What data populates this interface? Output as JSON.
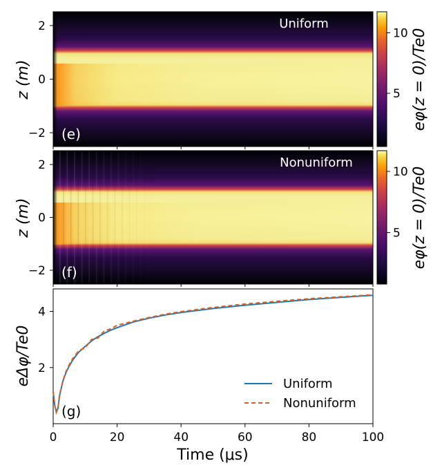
{
  "chart_data": [
    {
      "panel": "(e)",
      "type": "heatmap",
      "title": "Uniform",
      "xlabel": "",
      "ylabel": "z (m)",
      "xlim": [
        0,
        100
      ],
      "ylim": [
        -2.5,
        2.5
      ],
      "yticks": [
        2,
        0,
        -2
      ],
      "yticklabels": [
        "2",
        "0",
        "−2"
      ],
      "colorbar": {
        "label": "eφ(z = 0)/Te0",
        "range": [
          1,
          11.5
        ],
        "ticks": [
          5,
          10
        ],
        "ticklabels": [
          "5",
          "10"
        ],
        "colormap": "inferno"
      },
      "summary": {
        "plateau_z": [
          -1,
          1
        ],
        "plateau_value": 11,
        "outer_value": 1
      }
    },
    {
      "panel": "(f)",
      "type": "heatmap",
      "title": "Nonuniform",
      "xlabel": "",
      "ylabel": "z (m)",
      "xlim": [
        0,
        100
      ],
      "ylim": [
        -2.5,
        2.5
      ],
      "yticks": [
        2,
        0,
        -2
      ],
      "yticklabels": [
        "2",
        "0",
        "−2"
      ],
      "colorbar": {
        "label": "eφ(z = 0)/Te0",
        "range": [
          1,
          11.5
        ],
        "ticks": [
          5,
          10
        ],
        "ticklabels": [
          "5",
          "10"
        ],
        "colormap": "inferno"
      },
      "summary": {
        "plateau_z": [
          -1,
          1
        ],
        "plateau_value": 11,
        "outer_value": 1
      }
    },
    {
      "panel": "(g)",
      "type": "line",
      "xlabel": "Time (μs)",
      "ylabel": "eΔφ/Te0",
      "xlim": [
        0,
        100
      ],
      "ylim": [
        0,
        4.8
      ],
      "xticks": [
        0,
        20,
        40,
        60,
        80,
        100
      ],
      "xticklabels": [
        "0",
        "20",
        "40",
        "60",
        "80",
        "100"
      ],
      "yticks": [
        2,
        4
      ],
      "yticklabels": [
        "2",
        "4"
      ],
      "legend": "lower-right",
      "x": [
        0,
        0.5,
        1,
        1.5,
        2,
        3,
        4,
        5,
        6,
        8,
        10,
        12,
        14,
        16,
        18,
        20,
        25,
        30,
        35,
        40,
        50,
        60,
        70,
        80,
        90,
        100
      ],
      "series": [
        {
          "name": "Uniform",
          "color": "#1f77b4",
          "style": "solid",
          "values": [
            1.15,
            0.65,
            0.42,
            0.55,
            1.0,
            1.5,
            1.82,
            2.05,
            2.25,
            2.55,
            2.75,
            2.95,
            3.1,
            3.22,
            3.33,
            3.42,
            3.62,
            3.76,
            3.87,
            3.96,
            4.1,
            4.22,
            4.32,
            4.42,
            4.5,
            4.57
          ]
        },
        {
          "name": "Nonuniform",
          "color": "#e05c1a",
          "style": "dashed",
          "values": [
            1.15,
            0.65,
            0.4,
            0.55,
            1.02,
            1.52,
            1.85,
            2.1,
            2.3,
            2.6,
            2.7,
            3.0,
            3.05,
            3.3,
            3.38,
            3.5,
            3.65,
            3.78,
            3.9,
            3.99,
            4.14,
            4.26,
            4.36,
            4.45,
            4.52,
            4.59
          ]
        }
      ]
    }
  ]
}
